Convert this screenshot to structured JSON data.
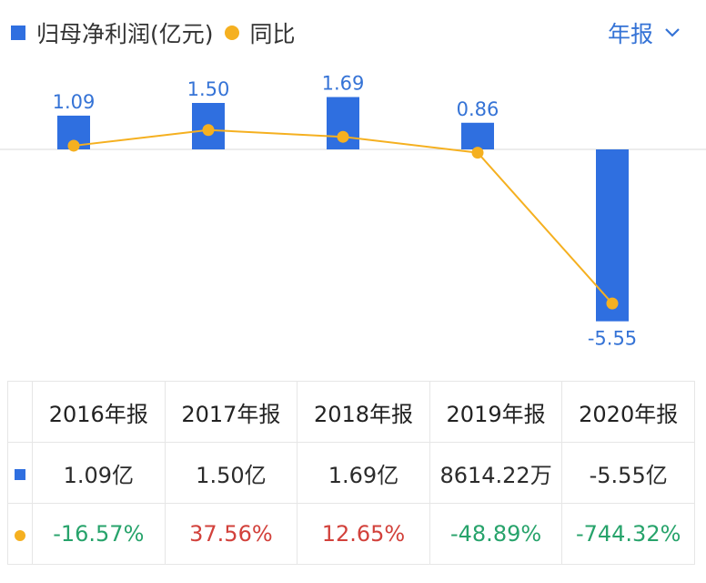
{
  "legend": {
    "bar_label": "归母净利润(亿元)",
    "line_label": "同比"
  },
  "period_selector": {
    "label": "年报"
  },
  "colors": {
    "bar": "#2f6fe0",
    "line": "#f5b020",
    "label": "#3573d6",
    "growth_positive": "#d2413b",
    "growth_negative": "#27a36b"
  },
  "chart_data": {
    "type": "bar",
    "categories": [
      "2016年报",
      "2017年报",
      "2018年报",
      "2019年报",
      "2020年报"
    ],
    "series": [
      {
        "name": "归母净利润(亿元)",
        "type": "bar",
        "values": [
          1.09,
          1.5,
          1.69,
          0.86,
          -5.55
        ],
        "labels": [
          "1.09",
          "1.50",
          "1.69",
          "0.86",
          "-5.55"
        ]
      },
      {
        "name": "同比",
        "type": "line",
        "values": [
          -16.57,
          37.56,
          12.65,
          -48.89,
          -744.32
        ]
      }
    ]
  },
  "table": {
    "headers": [
      "2016年报",
      "2017年报",
      "2018年报",
      "2019年报",
      "2020年报"
    ],
    "net_profit_row": [
      "1.09亿",
      "1.50亿",
      "1.69亿",
      "8614.22万",
      "-5.55亿"
    ],
    "yoy_row": [
      "-16.57%",
      "37.56%",
      "12.65%",
      "-48.89%",
      "-744.32%"
    ]
  }
}
